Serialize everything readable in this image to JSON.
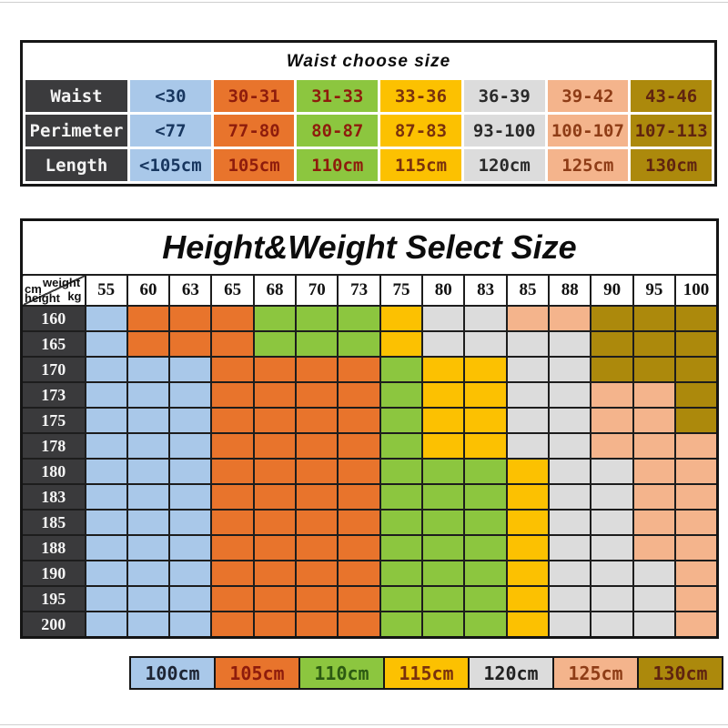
{
  "colors": {
    "blue": {
      "bg": "#a9c8e9",
      "text": "#17365f"
    },
    "orange": {
      "bg": "#e8742c",
      "text": "#8e1c0c"
    },
    "green": {
      "bg": "#8cc63f",
      "text": "#8e1c0c"
    },
    "yellow": {
      "bg": "#fcc101",
      "text": "#79310d"
    },
    "gray": {
      "bg": "#dcdcdc",
      "text": "#2a2a2a"
    },
    "peach": {
      "bg": "#f4b48c",
      "text": "#8e3c16"
    },
    "gold": {
      "bg": "#ac890c",
      "text": "#5f2410"
    }
  },
  "color_key_map": {
    "B": "blue",
    "O": "orange",
    "G": "green",
    "Y": "yellow",
    "S": "gray",
    "P": "peach",
    "D": "gold"
  },
  "chart_data": [
    {
      "type": "table",
      "title": "Waist choose size",
      "row_headers": [
        "Waist",
        "Perimeter",
        "Length"
      ],
      "column_colors": [
        "blue",
        "orange",
        "green",
        "yellow",
        "gray",
        "peach",
        "gold"
      ],
      "rows": [
        [
          "<30",
          "30-31",
          "31-33",
          "33-36",
          "36-39",
          "39-42",
          "43-46"
        ],
        [
          "<77",
          "77-80",
          "80-87",
          "87-83",
          "93-100",
          "100-107",
          "107-113"
        ],
        [
          "<105cm",
          "105cm",
          "110cm",
          "115cm",
          "120cm",
          "125cm",
          "130cm"
        ]
      ]
    },
    {
      "type": "table",
      "title": "Height&Weight Select Size",
      "corner": {
        "weight_label": "weight",
        "weight_unit": "kg",
        "height_unit": "cm",
        "height_label": "height"
      },
      "weights": [
        "55",
        "60",
        "63",
        "65",
        "68",
        "70",
        "73",
        "75",
        "80",
        "83",
        "85",
        "88",
        "90",
        "95",
        "100"
      ],
      "heights": [
        "160",
        "165",
        "170",
        "173",
        "175",
        "178",
        "180",
        "183",
        "185",
        "188",
        "190",
        "195",
        "200"
      ],
      "grid": [
        "BOOOGGGYSSPPDDD",
        "BOOOGGGYSSSSDDD",
        "BBBOOOOGYYSSDDD",
        "BBBOOOOGYYSSPPD",
        "BBBOOOOGYYSSPPD",
        "BBBOOOOGYYSSPPP",
        "BBBOOOOGGGYSSPP",
        "BBBOOOOGGGYSSPP",
        "BBBOOOOGGGYSSPP",
        "BBBOOOOGGGYSSPP",
        "BBBOOOOGGGYSSSP",
        "BBBOOOOGGGYSSSP",
        "BBBOOOOGGGYSSSP"
      ],
      "legend": [
        {
          "label": "100cm",
          "color": "blue",
          "text_color": "#1d2433"
        },
        {
          "label": "105cm",
          "color": "orange",
          "text_color": "#8e1c0c"
        },
        {
          "label": "110cm",
          "color": "green",
          "text_color": "#2c5a12"
        },
        {
          "label": "115cm",
          "color": "yellow",
          "text_color": "#79310d"
        },
        {
          "label": "120cm",
          "color": "gray",
          "text_color": "#222222"
        },
        {
          "label": "125cm",
          "color": "peach",
          "text_color": "#8e3c16"
        },
        {
          "label": "130cm",
          "color": "gold",
          "text_color": "#5f2410"
        }
      ]
    }
  ]
}
